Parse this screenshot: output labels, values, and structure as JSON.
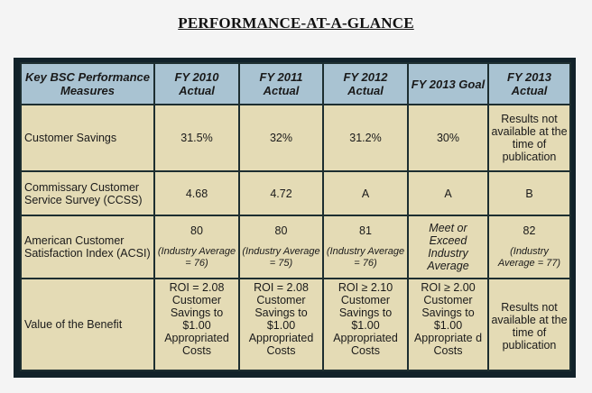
{
  "title": "PERFORMANCE-AT-A-GLANCE",
  "colors": {
    "header_bg": "#a9c3d2",
    "cell_bg": "#e4dbb5",
    "frame": "#12222a"
  },
  "columns": [
    "Key BSC Performance Measures",
    "FY 2010 Actual",
    "FY 2011 Actual",
    "FY 2012 Actual",
    "FY 2013 Goal",
    "FY 2013 Actual"
  ],
  "rows": [
    {
      "measure": "Customer Savings",
      "values": [
        "31.5%",
        "32%",
        "31.2%",
        "30%",
        "Results not available at the time of publication"
      ]
    },
    {
      "measure": "Commissary Customer Service Survey (CCSS)",
      "values": [
        "4.68",
        "4.72",
        "A",
        "A",
        "B"
      ]
    },
    {
      "measure": "American Customer Satisfaction Index (ACSI)",
      "values": [
        "80",
        "80",
        "81",
        "Meet or Exceed Industry Average",
        "82"
      ],
      "notes": [
        "(Industry Average = 76)",
        "(Industry Average = 75)",
        "(Industry Average = 76)",
        "",
        "(Industry Average = 77)"
      ]
    },
    {
      "measure": "Value of the Benefit",
      "values": [
        "ROI = 2.08 Customer Savings to $1.00 Appropriated Costs",
        "ROI = 2.08 Customer Savings to $1.00 Appropriated Costs",
        "ROI ≥ 2.10 Customer Savings to $1.00 Appropriated Costs",
        "ROI ≥ 2.00 Customer Savings to $1.00 Appropriate d Costs",
        "Results not available at the time of publication"
      ]
    }
  ]
}
